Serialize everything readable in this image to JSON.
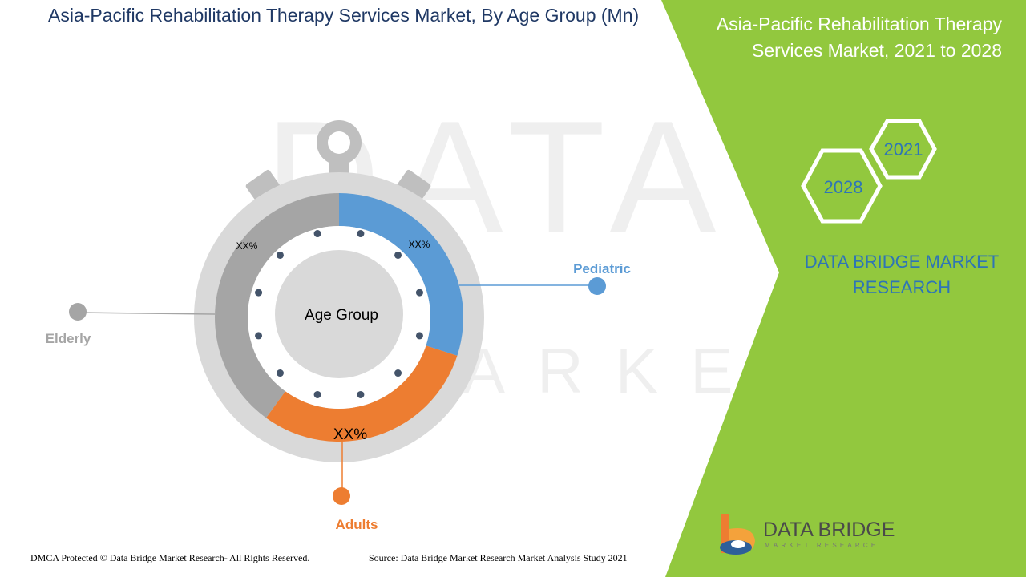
{
  "title": "Asia-Pacific Rehabilitation Therapy Services Market, By Age Group (Mn)",
  "side_panel": {
    "title": "Asia-Pacific Rehabilitation Therapy Services Market, 2021 to 2028",
    "year_start": "2021",
    "year_end": "2028",
    "brand": "DATA BRIDGE MARKET RESEARCH"
  },
  "logo": {
    "name": "DATA BRIDGE",
    "tagline": "MARKET RESEARCH"
  },
  "footer": {
    "copyright": "DMCA Protected © Data Bridge Market Research- All Rights Reserved.",
    "source": "Source: Data Bridge Market Research Market Analysis Study 2021"
  },
  "colors": {
    "pediatric": "#5b9bd5",
    "adults": "#ed7d31",
    "elderly": "#a5a5a5",
    "green_panel": "#92c83e"
  },
  "chart_data": {
    "type": "pie",
    "title": "Asia-Pacific Rehabilitation Therapy Services Market, By Age Group (Mn)",
    "center_label": "Age Group",
    "categories": [
      "Pediatric",
      "Adults",
      "Elderly"
    ],
    "values": [
      30,
      30,
      40
    ],
    "value_labels": [
      "XX%",
      "XX%",
      "XX%"
    ],
    "legend": [
      "Pediatric",
      "Adults",
      "Elderly"
    ]
  }
}
